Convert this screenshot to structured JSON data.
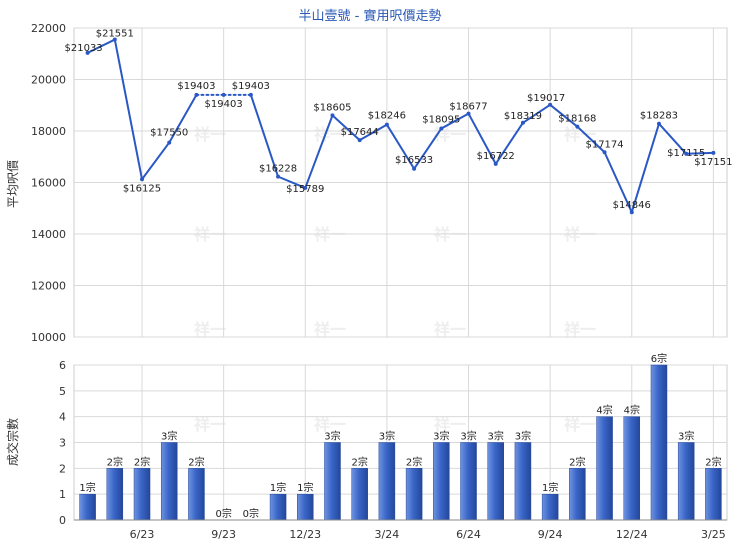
{
  "chart_data": [
    {
      "type": "line",
      "title": "半山壹號 - 實用呎價走勢",
      "ylabel": "平均呎價",
      "ylim": [
        10000,
        22000
      ],
      "yticks": [
        10000,
        12000,
        14000,
        16000,
        18000,
        20000,
        22000
      ],
      "grid": true,
      "color": "#2a58c5",
      "series": [
        {
          "points": [
            {
              "y": 21033,
              "label": "$21033"
            },
            {
              "y": 21551,
              "label": "$21551"
            },
            {
              "y": 16125,
              "label": "$16125"
            },
            {
              "y": 17550,
              "label": "$17550"
            },
            {
              "y": 19403,
              "label": "$19403"
            },
            {
              "y": 19403,
              "label": "$19403"
            },
            {
              "y": 19403,
              "label": "$19403"
            },
            {
              "y": 16228,
              "label": "$16228"
            },
            {
              "y": 15789,
              "label": "$15789"
            },
            {
              "y": 18605,
              "label": "$18605"
            },
            {
              "y": 17644,
              "label": "$17644"
            },
            {
              "y": 18246,
              "label": "$18246"
            },
            {
              "y": 16533,
              "label": "$16533"
            },
            {
              "y": 18095,
              "label": "$18095"
            },
            {
              "y": 18677,
              "label": "$18677"
            },
            {
              "y": 16722,
              "label": "$16722"
            },
            {
              "y": 18319,
              "label": "$18319"
            },
            {
              "y": 19017,
              "label": "$19017"
            },
            {
              "y": 18168,
              "label": "$18168"
            },
            {
              "y": 17174,
              "label": "$17174"
            },
            {
              "y": 14846,
              "label": "$14846"
            },
            {
              "y": 18283,
              "label": "$18283"
            },
            {
              "y": 17115,
              "label": "$17115"
            },
            {
              "y": 17151,
              "label": "$17151"
            }
          ]
        }
      ]
    },
    {
      "type": "bar",
      "ylabel": "成交宗數",
      "ylim": [
        0,
        6
      ],
      "yticks": [
        0,
        1,
        2,
        3,
        4,
        5,
        6
      ],
      "grid": true,
      "color": "#3a66c8",
      "xticks": [
        {
          "index": 2,
          "label": "6/23"
        },
        {
          "index": 5,
          "label": "9/23"
        },
        {
          "index": 8,
          "label": "12/23"
        },
        {
          "index": 11,
          "label": "3/24"
        },
        {
          "index": 14,
          "label": "6/24"
        },
        {
          "index": 17,
          "label": "9/24"
        },
        {
          "index": 20,
          "label": "12/24"
        },
        {
          "index": 23,
          "label": "3/25"
        }
      ],
      "values": [
        1,
        2,
        2,
        3,
        2,
        0,
        0,
        1,
        1,
        3,
        2,
        3,
        2,
        3,
        3,
        3,
        3,
        1,
        2,
        4,
        4,
        6,
        3,
        2
      ],
      "labels": [
        "1宗",
        "2宗",
        "2宗",
        "3宗",
        "2宗",
        "0宗",
        "0宗",
        "1宗",
        "1宗",
        "3宗",
        "2宗",
        "3宗",
        "2宗",
        "3宗",
        "3宗",
        "3宗",
        "3宗",
        "1宗",
        "2宗",
        "4宗",
        "4宗",
        "6宗",
        "3宗",
        "2宗"
      ]
    }
  ],
  "watermark": "祥一"
}
